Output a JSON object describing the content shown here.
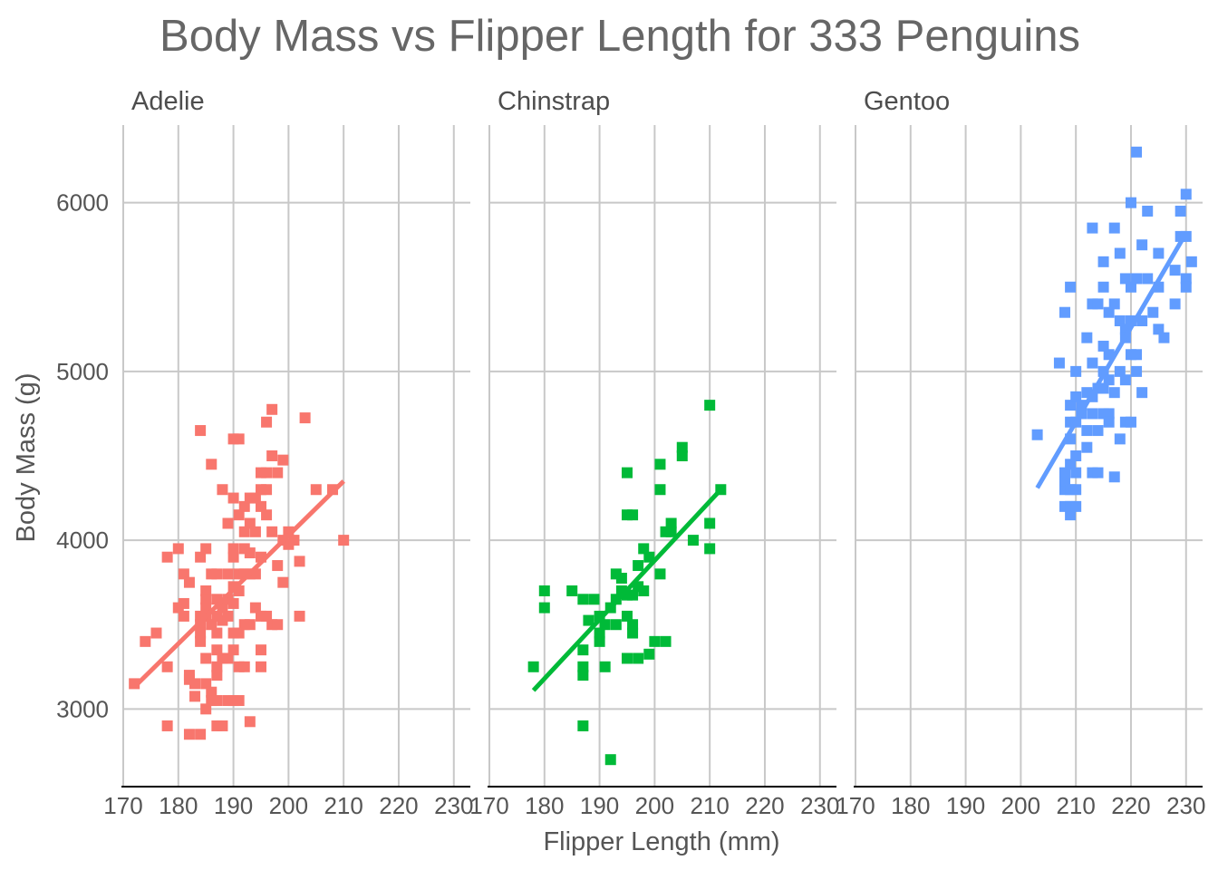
{
  "chart_data": {
    "type": "scatter",
    "title": "Body Mass vs Flipper Length for 333 Penguins",
    "xlabel": "Flipper Length (mm)",
    "ylabel": "Body Mass (g)",
    "xlim": [
      170,
      233
    ],
    "ylim": [
      2540,
      6460
    ],
    "x_ticks": [
      170,
      180,
      190,
      200,
      210,
      220,
      230
    ],
    "y_ticks": [
      3000,
      4000,
      5000,
      6000
    ],
    "grid": true,
    "legend": "none",
    "marker": "square",
    "trendline": "linear fit per facet",
    "facets": [
      {
        "name": "Adelie",
        "color": "#F8766D",
        "trend": [
          [
            172,
            3130
          ],
          [
            210,
            4350
          ]
        ],
        "points": [
          [
            172,
            3150
          ],
          [
            174,
            3400
          ],
          [
            176,
            3450
          ],
          [
            178,
            3900
          ],
          [
            178,
            3250
          ],
          [
            178,
            2900
          ],
          [
            180,
            3950
          ],
          [
            180,
            3600
          ],
          [
            181,
            3800
          ],
          [
            181,
            3625
          ],
          [
            181,
            3550
          ],
          [
            182,
            3750
          ],
          [
            182,
            3200
          ],
          [
            182,
            3175
          ],
          [
            182,
            2850
          ],
          [
            183,
            3150
          ],
          [
            183,
            3075
          ],
          [
            184,
            3900
          ],
          [
            184,
            3550
          ],
          [
            184,
            3500
          ],
          [
            184,
            3450
          ],
          [
            184,
            3400
          ],
          [
            184,
            2850
          ],
          [
            184,
            4650
          ],
          [
            185,
            3950
          ],
          [
            185,
            3700
          ],
          [
            185,
            3650
          ],
          [
            185,
            3600
          ],
          [
            185,
            3550
          ],
          [
            185,
            3300
          ],
          [
            185,
            3150
          ],
          [
            185,
            3000
          ],
          [
            186,
            4450
          ],
          [
            186,
            3800
          ],
          [
            186,
            3500
          ],
          [
            186,
            3100
          ],
          [
            186,
            3050
          ],
          [
            187,
            3800
          ],
          [
            187,
            3650
          ],
          [
            187,
            3550
          ],
          [
            187,
            3450
          ],
          [
            187,
            3350
          ],
          [
            187,
            3250
          ],
          [
            187,
            3200
          ],
          [
            187,
            3050
          ],
          [
            187,
            2900
          ],
          [
            188,
            4300
          ],
          [
            188,
            3600
          ],
          [
            188,
            3525
          ],
          [
            188,
            3300
          ],
          [
            188,
            2900
          ],
          [
            189,
            4100
          ],
          [
            189,
            3800
          ],
          [
            189,
            3650
          ],
          [
            189,
            3550
          ],
          [
            189,
            3300
          ],
          [
            189,
            3050
          ],
          [
            190,
            4600
          ],
          [
            190,
            4250
          ],
          [
            190,
            3950
          ],
          [
            190,
            3900
          ],
          [
            190,
            3725
          ],
          [
            190,
            3625
          ],
          [
            190,
            3450
          ],
          [
            190,
            3350
          ],
          [
            190,
            3050
          ],
          [
            191,
            4600
          ],
          [
            191,
            4150
          ],
          [
            191,
            3800
          ],
          [
            191,
            3700
          ],
          [
            191,
            3450
          ],
          [
            191,
            3250
          ],
          [
            191,
            3050
          ],
          [
            192,
            4200
          ],
          [
            192,
            4050
          ],
          [
            192,
            3950
          ],
          [
            192,
            3800
          ],
          [
            192,
            3500
          ],
          [
            192,
            3250
          ],
          [
            193,
            4250
          ],
          [
            193,
            4100
          ],
          [
            193,
            3925
          ],
          [
            193,
            3800
          ],
          [
            193,
            3500
          ],
          [
            193,
            2925
          ],
          [
            194,
            4250
          ],
          [
            194,
            4050
          ],
          [
            194,
            3800
          ],
          [
            194,
            3600
          ],
          [
            195,
            4400
          ],
          [
            195,
            4300
          ],
          [
            195,
            4200
          ],
          [
            195,
            3900
          ],
          [
            195,
            3550
          ],
          [
            195,
            3350
          ],
          [
            195,
            3250
          ],
          [
            196,
            4700
          ],
          [
            196,
            4400
          ],
          [
            196,
            4300
          ],
          [
            196,
            4150
          ],
          [
            196,
            3550
          ],
          [
            197,
            4775
          ],
          [
            197,
            4500
          ],
          [
            197,
            4050
          ],
          [
            197,
            3500
          ],
          [
            198,
            4400
          ],
          [
            198,
            3850
          ],
          [
            198,
            3500
          ],
          [
            199,
            4475
          ],
          [
            199,
            4000
          ],
          [
            199,
            3750
          ],
          [
            200,
            4050
          ],
          [
            200,
            3975
          ],
          [
            201,
            4000
          ],
          [
            202,
            3875
          ],
          [
            202,
            3550
          ],
          [
            203,
            4725
          ],
          [
            205,
            4300
          ],
          [
            208,
            4300
          ],
          [
            210,
            4000
          ]
        ]
      },
      {
        "name": "Chinstrap",
        "color": "#00BA38",
        "trend": [
          [
            178,
            3110
          ],
          [
            212,
            4300
          ]
        ],
        "points": [
          [
            178,
            3250
          ],
          [
            180,
            3700
          ],
          [
            180,
            3600
          ],
          [
            185,
            3700
          ],
          [
            187,
            3650
          ],
          [
            187,
            3350
          ],
          [
            187,
            3250
          ],
          [
            187,
            3200
          ],
          [
            187,
            2900
          ],
          [
            188,
            3525
          ],
          [
            189,
            3650
          ],
          [
            190,
            3550
          ],
          [
            190,
            3450
          ],
          [
            190,
            3400
          ],
          [
            191,
            3500
          ],
          [
            191,
            3250
          ],
          [
            192,
            3600
          ],
          [
            192,
            2700
          ],
          [
            193,
            3800
          ],
          [
            193,
            3650
          ],
          [
            193,
            3500
          ],
          [
            194,
            3775
          ],
          [
            194,
            3700
          ],
          [
            195,
            4400
          ],
          [
            195,
            4150
          ],
          [
            195,
            3675
          ],
          [
            195,
            3550
          ],
          [
            195,
            3300
          ],
          [
            196,
            4150
          ],
          [
            196,
            3675
          ],
          [
            196,
            3500
          ],
          [
            196,
            3450
          ],
          [
            197,
            3850
          ],
          [
            197,
            3725
          ],
          [
            197,
            3300
          ],
          [
            198,
            3950
          ],
          [
            198,
            3700
          ],
          [
            199,
            3900
          ],
          [
            199,
            3325
          ],
          [
            200,
            3400
          ],
          [
            201,
            4450
          ],
          [
            201,
            4300
          ],
          [
            201,
            3800
          ],
          [
            202,
            4050
          ],
          [
            202,
            3400
          ],
          [
            203,
            4050
          ],
          [
            203,
            4100
          ],
          [
            205,
            4500
          ],
          [
            205,
            4550
          ],
          [
            207,
            4000
          ],
          [
            210,
            4800
          ],
          [
            210,
            4100
          ],
          [
            210,
            3950
          ],
          [
            212,
            4300
          ]
        ]
      },
      {
        "name": "Gentoo",
        "color": "#619CFF",
        "trend": [
          [
            203,
            4310
          ],
          [
            230,
            5820
          ]
        ],
        "points": [
          [
            203,
            4625
          ],
          [
            207,
            5050
          ],
          [
            208,
            5350
          ],
          [
            208,
            4400
          ],
          [
            208,
            4300
          ],
          [
            208,
            4200
          ],
          [
            208,
            4350
          ],
          [
            209,
            5500
          ],
          [
            209,
            4800
          ],
          [
            209,
            4700
          ],
          [
            209,
            4600
          ],
          [
            209,
            4450
          ],
          [
            209,
            4300
          ],
          [
            209,
            4150
          ],
          [
            209,
            4200
          ],
          [
            210,
            5000
          ],
          [
            210,
            4850
          ],
          [
            210,
            4700
          ],
          [
            210,
            4500
          ],
          [
            210,
            4400
          ],
          [
            210,
            4300
          ],
          [
            210,
            4200
          ],
          [
            211,
            4750
          ],
          [
            211,
            4800
          ],
          [
            212,
            5200
          ],
          [
            212,
            4875
          ],
          [
            212,
            4550
          ],
          [
            212,
            4650
          ],
          [
            213,
            5850
          ],
          [
            213,
            5400
          ],
          [
            213,
            5050
          ],
          [
            213,
            4850
          ],
          [
            213,
            4750
          ],
          [
            213,
            4400
          ],
          [
            214,
            5400
          ],
          [
            214,
            4900
          ],
          [
            214,
            4650
          ],
          [
            214,
            4400
          ],
          [
            215,
            5650
          ],
          [
            215,
            5500
          ],
          [
            215,
            5150
          ],
          [
            215,
            5000
          ],
          [
            215,
            4750
          ],
          [
            215,
            4900
          ],
          [
            216,
            5350
          ],
          [
            216,
            5100
          ],
          [
            216,
            4950
          ],
          [
            216,
            4750
          ],
          [
            216,
            4700
          ],
          [
            217,
            5850
          ],
          [
            217,
            5400
          ],
          [
            217,
            4875
          ],
          [
            217,
            4375
          ],
          [
            218,
            5700
          ],
          [
            218,
            5300
          ],
          [
            218,
            5000
          ],
          [
            218,
            4600
          ],
          [
            219,
            5550
          ],
          [
            219,
            5250
          ],
          [
            219,
            5200
          ],
          [
            219,
            4950
          ],
          [
            219,
            4700
          ],
          [
            220,
            6000
          ],
          [
            220,
            5500
          ],
          [
            220,
            5300
          ],
          [
            220,
            5100
          ],
          [
            220,
            4700
          ],
          [
            221,
            6300
          ],
          [
            221,
            5550
          ],
          [
            221,
            5100
          ],
          [
            221,
            5000
          ],
          [
            222,
            5750
          ],
          [
            222,
            5300
          ],
          [
            222,
            4875
          ],
          [
            223,
            5950
          ],
          [
            223,
            5550
          ],
          [
            224,
            5350
          ],
          [
            225,
            5700
          ],
          [
            225,
            5500
          ],
          [
            225,
            5250
          ],
          [
            226,
            5200
          ],
          [
            228,
            5600
          ],
          [
            228,
            5400
          ],
          [
            229,
            5950
          ],
          [
            229,
            5800
          ],
          [
            230,
            6050
          ],
          [
            230,
            5800
          ],
          [
            230,
            5550
          ],
          [
            230,
            5500
          ],
          [
            231,
            5650
          ]
        ]
      }
    ]
  }
}
